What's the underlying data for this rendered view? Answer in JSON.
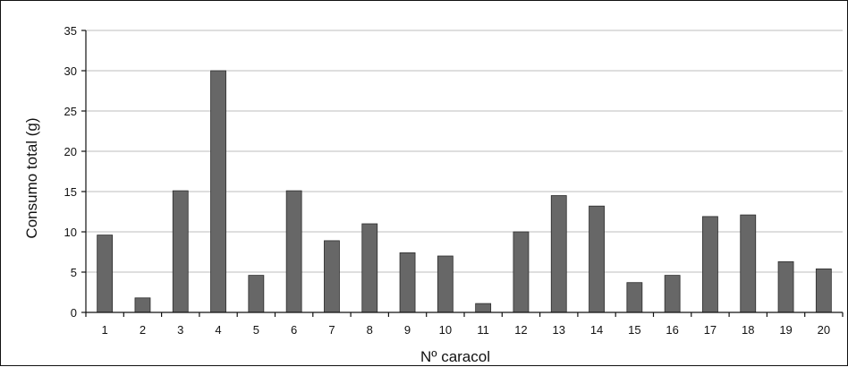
{
  "chart_data": {
    "type": "bar",
    "title": "",
    "xlabel": "Nº caracol",
    "ylabel": "Consumo total (g)",
    "ylim": [
      0,
      35
    ],
    "yticks": [
      0,
      5,
      10,
      15,
      20,
      25,
      30,
      35
    ],
    "categories": [
      "1",
      "2",
      "3",
      "4",
      "5",
      "6",
      "7",
      "8",
      "9",
      "10",
      "11",
      "12",
      "13",
      "14",
      "15",
      "16",
      "17",
      "18",
      "19",
      "20"
    ],
    "values": [
      9.6,
      1.8,
      15.1,
      30,
      4.6,
      15.1,
      8.9,
      11,
      7.4,
      7,
      1.1,
      10,
      14.5,
      13.2,
      3.7,
      4.6,
      11.9,
      12.1,
      6.3,
      5.4
    ],
    "grid": true,
    "legend": "none",
    "colors": {
      "bar": "#676767",
      "bar_edge": "#2c2c2c",
      "grid": "#bdbdbd",
      "axis": "#111111"
    }
  }
}
